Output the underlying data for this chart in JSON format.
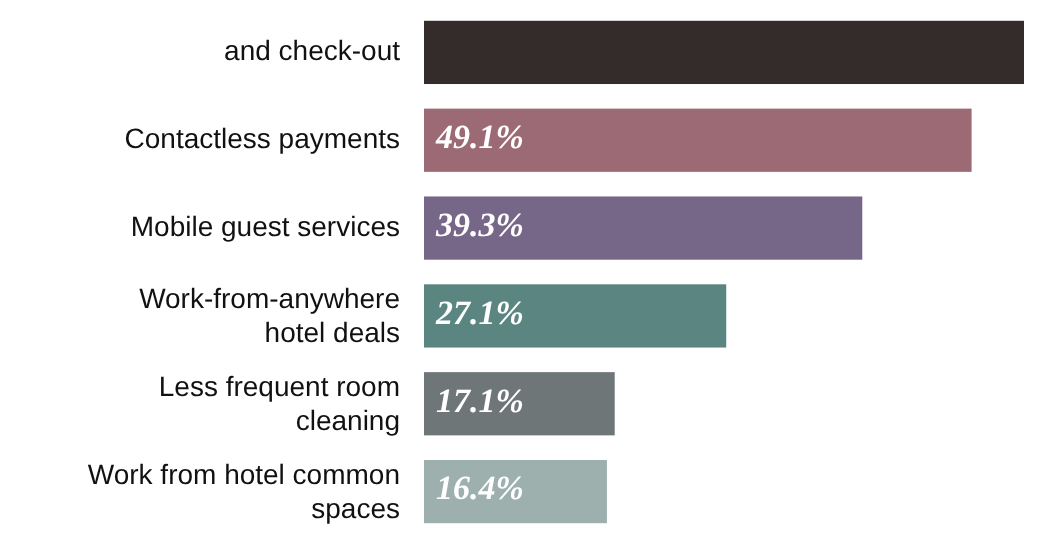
{
  "chart_data": {
    "type": "bar",
    "orientation": "horizontal",
    "categories": [
      "and check-out",
      "Contactless payments",
      "Mobile guest services",
      "Work-from-anywhere hotel deals",
      "Less frequent room cleaning",
      "Work from hotel common spaces"
    ],
    "values": [
      53.8,
      49.1,
      39.3,
      27.1,
      17.1,
      16.4
    ],
    "colors": [
      "#332c2b",
      "#9c6a74",
      "#766688",
      "#5a8580",
      "#6f7677",
      "#9db0ae"
    ],
    "value_labels": [
      null,
      "49.1%",
      "39.3%",
      "27.1%",
      "17.1%",
      "16.4%"
    ]
  }
}
